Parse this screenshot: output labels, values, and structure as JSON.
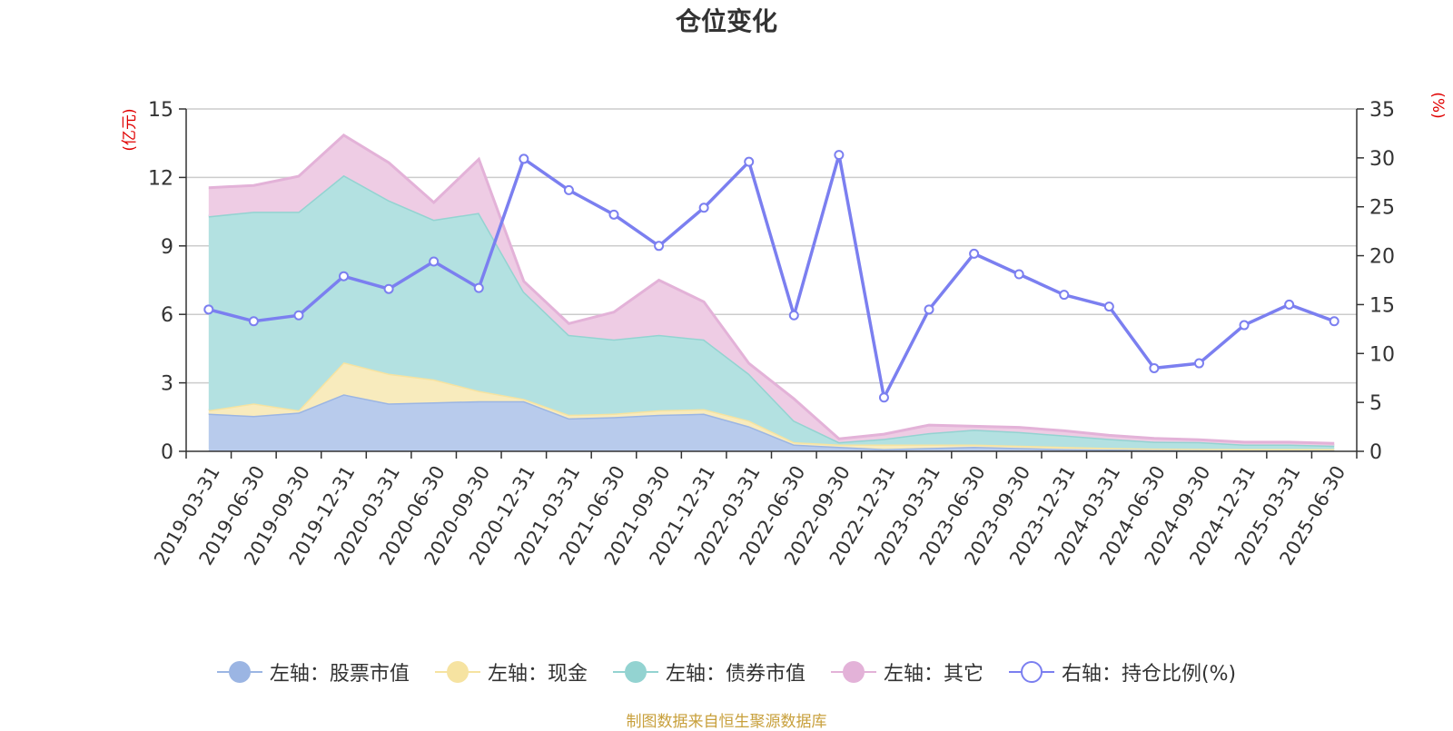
{
  "chart_data": {
    "type": "area",
    "title": "仓位变化",
    "left_axis_unit": "(亿元)",
    "right_axis_unit": "(%)",
    "left_ylim": [
      0,
      15
    ],
    "left_ticks": [
      0,
      3,
      6,
      9,
      12,
      15
    ],
    "right_ylim": [
      0,
      35
    ],
    "right_ticks": [
      0,
      5,
      10,
      15,
      20,
      25,
      30,
      35
    ],
    "grid": true,
    "legend_position": "bottom",
    "categories": [
      "2019-03-31",
      "2019-06-30",
      "2019-09-30",
      "2019-12-31",
      "2020-03-31",
      "2020-06-30",
      "2020-09-30",
      "2020-12-31",
      "2021-03-31",
      "2021-06-30",
      "2021-09-30",
      "2021-12-31",
      "2022-03-31",
      "2022-06-30",
      "2022-09-30",
      "2022-12-31",
      "2023-03-31",
      "2023-06-30",
      "2023-09-30",
      "2023-12-31",
      "2024-03-31",
      "2024-06-30",
      "2024-09-30",
      "2024-12-31",
      "2025-03-31",
      "2025-06-30"
    ],
    "stacked_series": [
      {
        "name": "左轴：股票市值",
        "color": "#9bb5e3",
        "fill": "#b8cbec",
        "values": [
          1.65,
          1.55,
          1.7,
          2.5,
          2.1,
          2.15,
          2.2,
          2.2,
          1.45,
          1.5,
          1.6,
          1.65,
          1.1,
          0.3,
          0.2,
          0.1,
          0.15,
          0.2,
          0.15,
          0.1,
          0.08,
          0.07,
          0.06,
          0.05,
          0.05,
          0.05
        ]
      },
      {
        "name": "左轴：现金",
        "color": "#f6e3a1",
        "fill": "#f8ebbd",
        "values": [
          0.15,
          0.55,
          0.1,
          1.4,
          1.3,
          1.0,
          0.45,
          0.1,
          0.15,
          0.15,
          0.2,
          0.2,
          0.25,
          0.1,
          0.1,
          0.2,
          0.15,
          0.1,
          0.1,
          0.1,
          0.07,
          0.05,
          0.05,
          0.05,
          0.05,
          0.05
        ]
      },
      {
        "name": "左轴：债券市值",
        "color": "#93d3d1",
        "fill": "#b3e1e1",
        "values": [
          8.5,
          8.4,
          8.7,
          8.2,
          7.6,
          7.0,
          7.8,
          4.7,
          3.5,
          3.25,
          3.3,
          3.05,
          2.05,
          0.95,
          0.1,
          0.25,
          0.5,
          0.65,
          0.6,
          0.5,
          0.4,
          0.3,
          0.3,
          0.2,
          0.2,
          0.15
        ]
      },
      {
        "name": "左轴：其它",
        "color": "#e3b2d8",
        "fill": "#eecce4",
        "values": [
          1.25,
          1.15,
          1.55,
          1.75,
          1.65,
          0.75,
          2.35,
          0.45,
          0.5,
          1.2,
          2.4,
          1.65,
          0.45,
          0.95,
          0.15,
          0.2,
          0.35,
          0.15,
          0.2,
          0.2,
          0.15,
          0.15,
          0.1,
          0.1,
          0.1,
          0.1
        ]
      }
    ],
    "line_series": {
      "name": "右轴：持仓比例(%)",
      "color": "#7b7ff0",
      "values": [
        14.5,
        13.3,
        13.9,
        17.9,
        16.6,
        19.4,
        16.7,
        29.9,
        26.7,
        24.2,
        21.0,
        24.9,
        29.6,
        13.9,
        30.3,
        5.5,
        14.5,
        20.2,
        18.1,
        16.0,
        14.8,
        8.5,
        9.0,
        12.9,
        15.0,
        13.3
      ]
    },
    "source": "制图数据来自恒生聚源数据库"
  }
}
